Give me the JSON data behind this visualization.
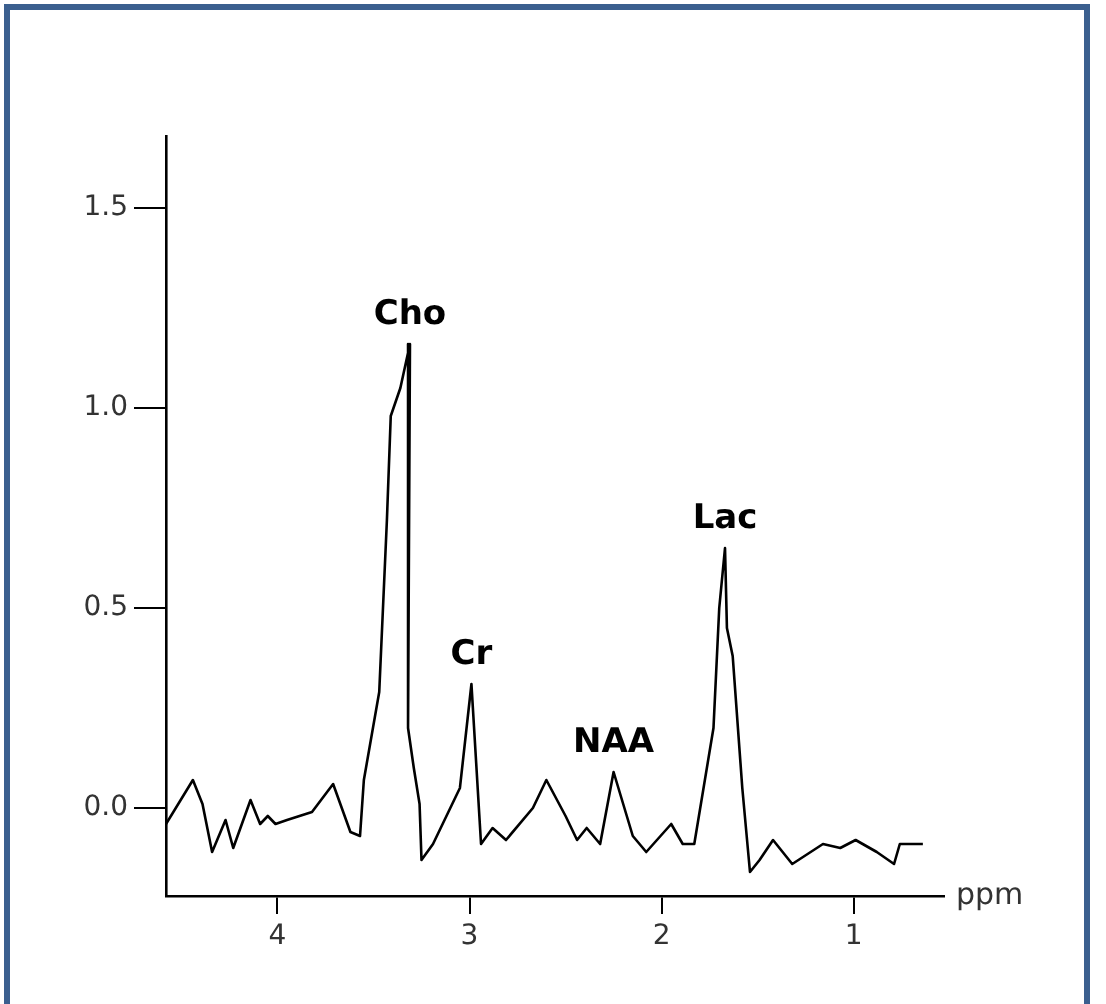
{
  "chart_data": {
    "type": "line",
    "xlabel": "ppm",
    "color": "#000000",
    "x": [
      4.58,
      4.44,
      4.39,
      4.34,
      4.27,
      4.23,
      4.14,
      4.09,
      4.05,
      4.01,
      3.95,
      3.82,
      3.71,
      3.62,
      3.57,
      3.55,
      3.47,
      3.43,
      3.41,
      3.36,
      3.31,
      3.32,
      3.29,
      3.26,
      3.25,
      3.19,
      3.05,
      2.99,
      2.94,
      2.88,
      2.81,
      2.67,
      2.6,
      2.5,
      2.44,
      2.39,
      2.32,
      2.25,
      2.15,
      2.08,
      1.95,
      1.89,
      1.83,
      1.73,
      1.7,
      1.67,
      1.66,
      1.63,
      1.58,
      1.54,
      1.49,
      1.42,
      1.32,
      1.16,
      1.07,
      0.99,
      0.88,
      0.79,
      0.76,
      0.64
    ],
    "values": [
      -0.04,
      0.07,
      0.01,
      -0.11,
      -0.03,
      -0.1,
      0.02,
      -0.04,
      -0.02,
      -0.04,
      -0.03,
      -0.01,
      0.06,
      -0.06,
      -0.07,
      0.07,
      0.29,
      0.72,
      0.98,
      1.05,
      1.16,
      0.2,
      0.1,
      0.01,
      -0.13,
      -0.09,
      0.05,
      0.31,
      -0.09,
      -0.05,
      -0.08,
      0.0,
      0.07,
      -0.02,
      -0.08,
      -0.05,
      -0.09,
      0.09,
      -0.07,
      -0.11,
      -0.04,
      -0.09,
      -0.09,
      0.2,
      0.5,
      0.65,
      0.45,
      0.38,
      0.05,
      -0.16,
      -0.13,
      -0.08,
      -0.14,
      -0.09,
      -0.1,
      -0.08,
      -0.11,
      -0.14,
      -0.09,
      -0.09
    ],
    "xlim": [
      4.58,
      0.53
    ],
    "ylim": [
      -0.22,
      1.68
    ],
    "xticks": [
      4,
      3,
      2,
      1
    ],
    "yticks": [
      {
        "value": 0,
        "label": "0.0"
      },
      {
        "value": 0.5,
        "label": "0.5"
      },
      {
        "value": 1,
        "label": "1.0"
      },
      {
        "value": 1.5,
        "label": "1.5"
      }
    ],
    "annotations": [
      {
        "text": "Cho",
        "x": 3.31,
        "y": 1.16
      },
      {
        "text": "Cr",
        "x": 2.99,
        "y": 0.31
      },
      {
        "text": "NAA",
        "x": 2.25,
        "y": 0.09
      },
      {
        "text": "Lac",
        "x": 1.67,
        "y": 0.65
      }
    ]
  }
}
